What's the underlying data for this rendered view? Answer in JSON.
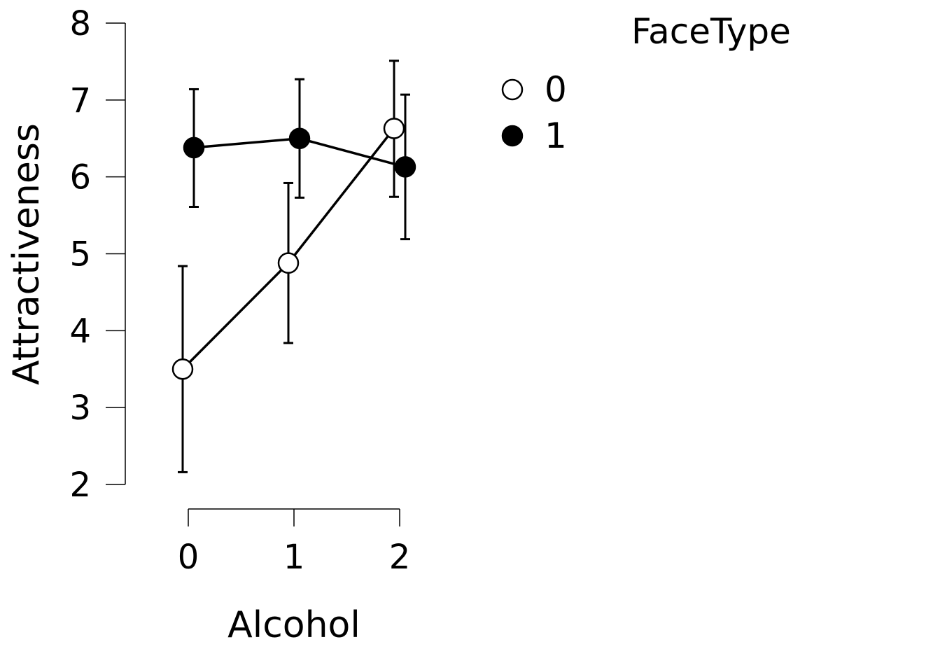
{
  "chart_data": {
    "type": "line",
    "xlabel": "Alcohol",
    "ylabel": "Attractiveness",
    "categories": [
      "0",
      "1",
      "2"
    ],
    "x": [
      0,
      1,
      2
    ],
    "xlim": [
      -0.5,
      2.5
    ],
    "ylim": [
      2,
      8
    ],
    "yticks": [
      2,
      3,
      4,
      5,
      6,
      7,
      8
    ],
    "grid": false,
    "legend": {
      "title": "FaceType",
      "position": "top-right",
      "entries": [
        {
          "label": "0",
          "marker": "open-circle"
        },
        {
          "label": "1",
          "marker": "filled-circle"
        }
      ]
    },
    "series": [
      {
        "name": "0",
        "marker": "open-circle",
        "fill": "#ffffff",
        "values": [
          3.5,
          4.88,
          6.63
        ],
        "ci_low": [
          2.16,
          3.84,
          5.74
        ],
        "ci_high": [
          4.84,
          5.92,
          7.51
        ]
      },
      {
        "name": "1",
        "marker": "filled-circle",
        "fill": "#000000",
        "values": [
          6.38,
          6.5,
          6.13
        ],
        "ci_low": [
          5.61,
          5.73,
          5.19
        ],
        "ci_high": [
          7.14,
          7.27,
          7.07
        ]
      }
    ]
  }
}
